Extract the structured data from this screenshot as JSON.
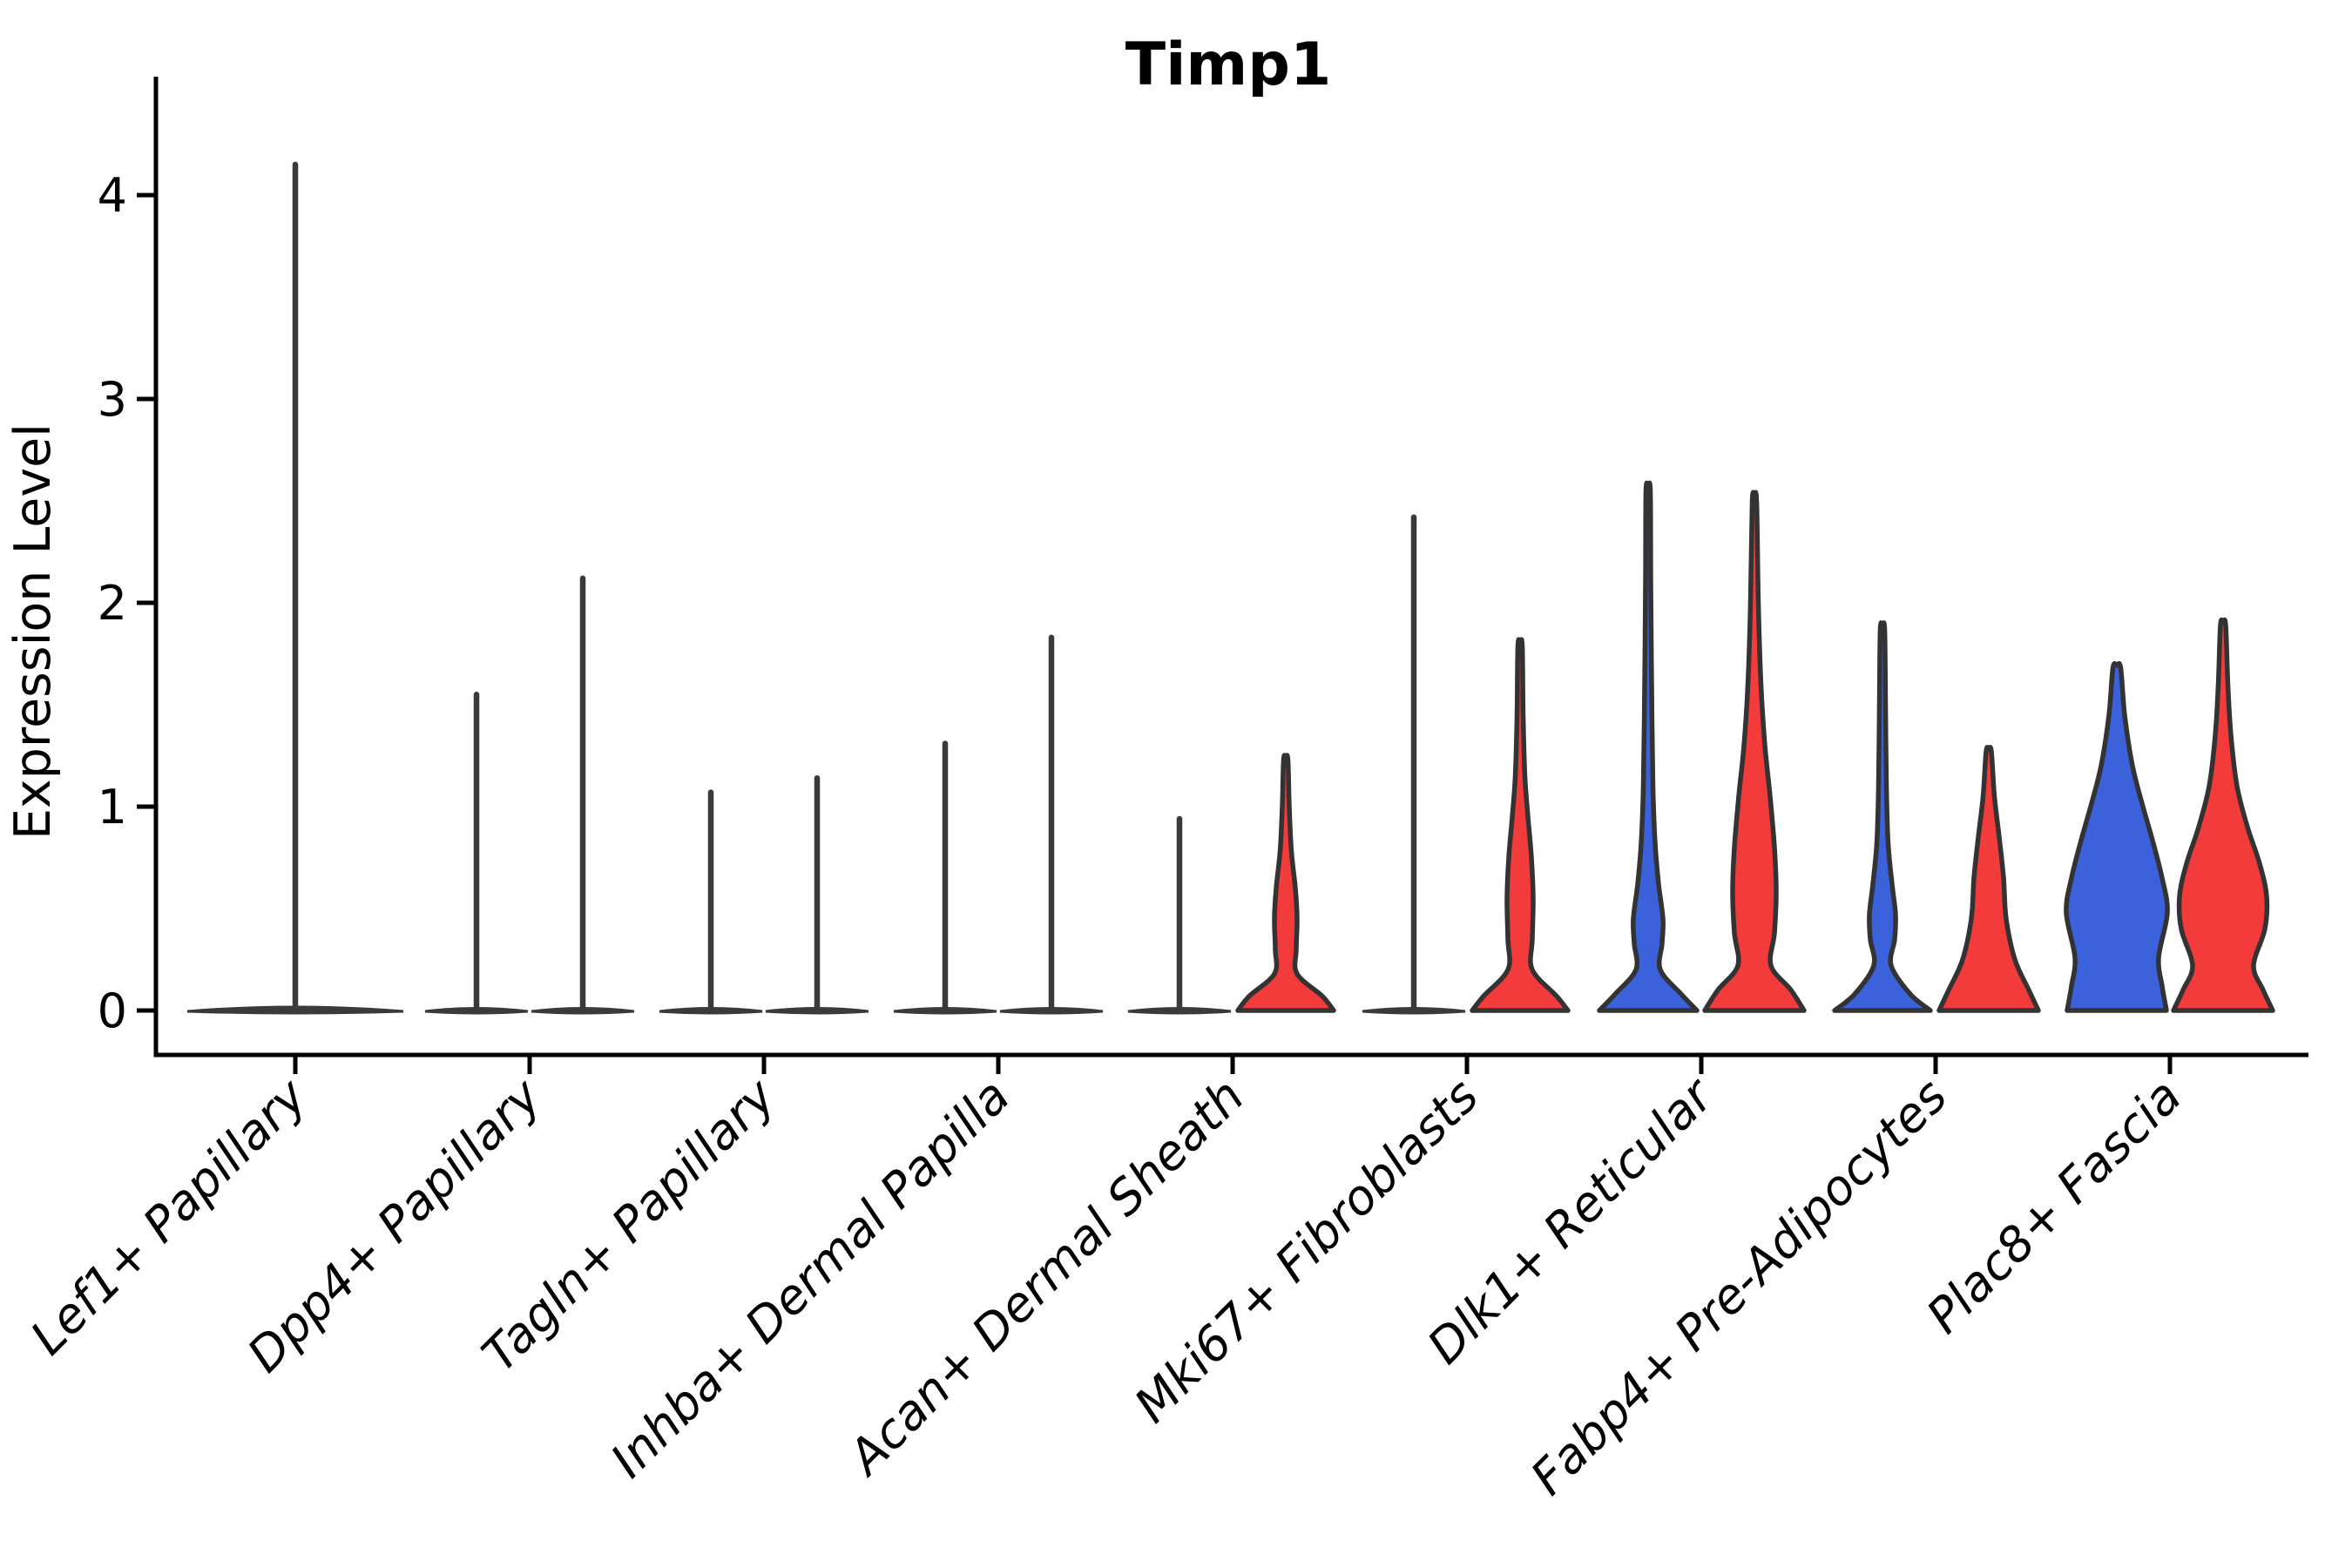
{
  "title": "Timp1",
  "colors": {
    "blue_fill": "#3B62DB",
    "red_fill": "#F43B3B",
    "violin_outline": "#333333",
    "collapsed_line": "#3A3A3A",
    "axis": "#000000"
  },
  "chart_data": {
    "type": "violin",
    "title": "Timp1",
    "ylabel": "Expression Level",
    "xlabel": "",
    "ylim": [
      -0.22,
      4.6
    ],
    "yticks": [
      0,
      1,
      2,
      3,
      4
    ],
    "grid": false,
    "legend": "none",
    "x_tick_rotation": 45,
    "categories": [
      "Lef1+ Papillary",
      "Dpp4+ Papillary",
      "Tagln+ Papillary",
      "Inhba+ Dermal Papilla",
      "Acan+ Dermal Sheath",
      "Mki67+ Fibroblasts",
      "Dlk1+ Reticular",
      "Fabp4+ Pre-Adipocytes",
      "Plac8+ Fascia"
    ],
    "series": [
      {
        "name": "blue",
        "color": "#3B62DB",
        "position": "left",
        "max_expression": [
          4.15,
          1.55,
          1.07,
          1.31,
          0.94,
          2.42,
          2.55,
          1.87,
          1.68
        ]
      },
      {
        "name": "red",
        "color": "#F43B3B",
        "position": "right",
        "max_expression": [
          null,
          2.12,
          1.14,
          1.83,
          1.23,
          1.79,
          2.5,
          1.27,
          1.89
        ]
      }
    ],
    "violins": [
      {
        "category_index": 0,
        "series": "blue",
        "side": "center",
        "max": 4.15,
        "collapsed": true,
        "half_width": 124
      },
      {
        "category_index": 1,
        "series": "blue",
        "side": "left",
        "max": 1.55,
        "collapsed": true,
        "half_width": 59
      },
      {
        "category_index": 1,
        "series": "red",
        "side": "right",
        "max": 2.12,
        "collapsed": true,
        "half_width": 59
      },
      {
        "category_index": 2,
        "series": "blue",
        "side": "left",
        "max": 1.07,
        "collapsed": true,
        "half_width": 59
      },
      {
        "category_index": 2,
        "series": "red",
        "side": "right",
        "max": 1.14,
        "collapsed": true,
        "half_width": 59
      },
      {
        "category_index": 3,
        "series": "blue",
        "side": "left",
        "max": 1.31,
        "collapsed": true,
        "half_width": 59
      },
      {
        "category_index": 3,
        "series": "red",
        "side": "right",
        "max": 1.83,
        "collapsed": true,
        "half_width": 59
      },
      {
        "category_index": 4,
        "series": "blue",
        "side": "left",
        "max": 0.94,
        "collapsed": true,
        "half_width": 59
      },
      {
        "category_index": 4,
        "series": "red",
        "side": "right",
        "max": 1.23,
        "collapsed": false,
        "half_width": 59,
        "profile": [
          [
            0,
            55
          ],
          [
            0.07,
            42
          ],
          [
            0.18,
            13
          ],
          [
            0.3,
            12
          ],
          [
            0.45,
            13
          ],
          [
            0.6,
            11
          ],
          [
            0.78,
            6.5
          ],
          [
            1.0,
            4
          ],
          [
            1.23,
            2.5
          ]
        ]
      },
      {
        "category_index": 5,
        "series": "blue",
        "side": "left",
        "max": 2.42,
        "collapsed": true,
        "half_width": 59
      },
      {
        "category_index": 5,
        "series": "red",
        "side": "right",
        "max": 1.79,
        "collapsed": false,
        "half_width": 59,
        "profile": [
          [
            0,
            55
          ],
          [
            0.07,
            42
          ],
          [
            0.2,
            14
          ],
          [
            0.35,
            14
          ],
          [
            0.55,
            15
          ],
          [
            0.75,
            13
          ],
          [
            0.95,
            9
          ],
          [
            1.15,
            5.5
          ],
          [
            1.45,
            3.5
          ],
          [
            1.79,
            2.5
          ]
        ]
      },
      {
        "category_index": 6,
        "series": "blue",
        "side": "left",
        "max": 2.55,
        "collapsed": false,
        "half_width": 59,
        "profile": [
          [
            0,
            56
          ],
          [
            0.08,
            38
          ],
          [
            0.2,
            14
          ],
          [
            0.33,
            16
          ],
          [
            0.45,
            17
          ],
          [
            0.62,
            12
          ],
          [
            0.82,
            8
          ],
          [
            1.1,
            5.5
          ],
          [
            1.6,
            4
          ],
          [
            2.1,
            3
          ],
          [
            2.55,
            2.5
          ]
        ]
      },
      {
        "category_index": 6,
        "series": "red",
        "side": "right",
        "max": 2.5,
        "collapsed": false,
        "half_width": 59,
        "profile": [
          [
            0,
            57
          ],
          [
            0.1,
            42
          ],
          [
            0.22,
            19
          ],
          [
            0.38,
            23
          ],
          [
            0.58,
            25
          ],
          [
            0.8,
            23
          ],
          [
            1.05,
            18
          ],
          [
            1.3,
            12
          ],
          [
            1.6,
            7.5
          ],
          [
            2.0,
            4.5
          ],
          [
            2.5,
            2.5
          ]
        ]
      },
      {
        "category_index": 7,
        "series": "blue",
        "side": "left",
        "max": 1.87,
        "collapsed": false,
        "half_width": 59,
        "profile": [
          [
            0,
            55
          ],
          [
            0.08,
            32
          ],
          [
            0.22,
            10
          ],
          [
            0.35,
            14
          ],
          [
            0.47,
            15
          ],
          [
            0.62,
            11
          ],
          [
            0.82,
            6.5
          ],
          [
            1.1,
            4.5
          ],
          [
            1.5,
            3.5
          ],
          [
            1.87,
            2.5
          ]
        ]
      },
      {
        "category_index": 7,
        "series": "red",
        "side": "right",
        "max": 1.27,
        "collapsed": false,
        "half_width": 59,
        "profile": [
          [
            0,
            57
          ],
          [
            0.1,
            46
          ],
          [
            0.25,
            30
          ],
          [
            0.45,
            20
          ],
          [
            0.65,
            17
          ],
          [
            0.85,
            12
          ],
          [
            1.05,
            6.5
          ],
          [
            1.27,
            3
          ]
        ]
      },
      {
        "category_index": 8,
        "series": "blue",
        "side": "left",
        "max": 1.68,
        "collapsed": false,
        "half_width": 59,
        "profile": [
          [
            0,
            57
          ],
          [
            0.12,
            52
          ],
          [
            0.26,
            48
          ],
          [
            0.48,
            58
          ],
          [
            0.65,
            52
          ],
          [
            0.85,
            40
          ],
          [
            1.0,
            30
          ],
          [
            1.2,
            18
          ],
          [
            1.45,
            9
          ],
          [
            1.68,
            4.5
          ]
        ]
      },
      {
        "category_index": 8,
        "series": "red",
        "side": "right",
        "max": 1.89,
        "collapsed": false,
        "half_width": 59,
        "profile": [
          [
            0,
            57
          ],
          [
            0.1,
            46
          ],
          [
            0.22,
            35
          ],
          [
            0.4,
            48
          ],
          [
            0.56,
            50
          ],
          [
            0.72,
            42
          ],
          [
            0.9,
            28
          ],
          [
            1.1,
            16
          ],
          [
            1.35,
            9
          ],
          [
            1.6,
            5.5
          ],
          [
            1.89,
            3
          ]
        ]
      }
    ]
  }
}
